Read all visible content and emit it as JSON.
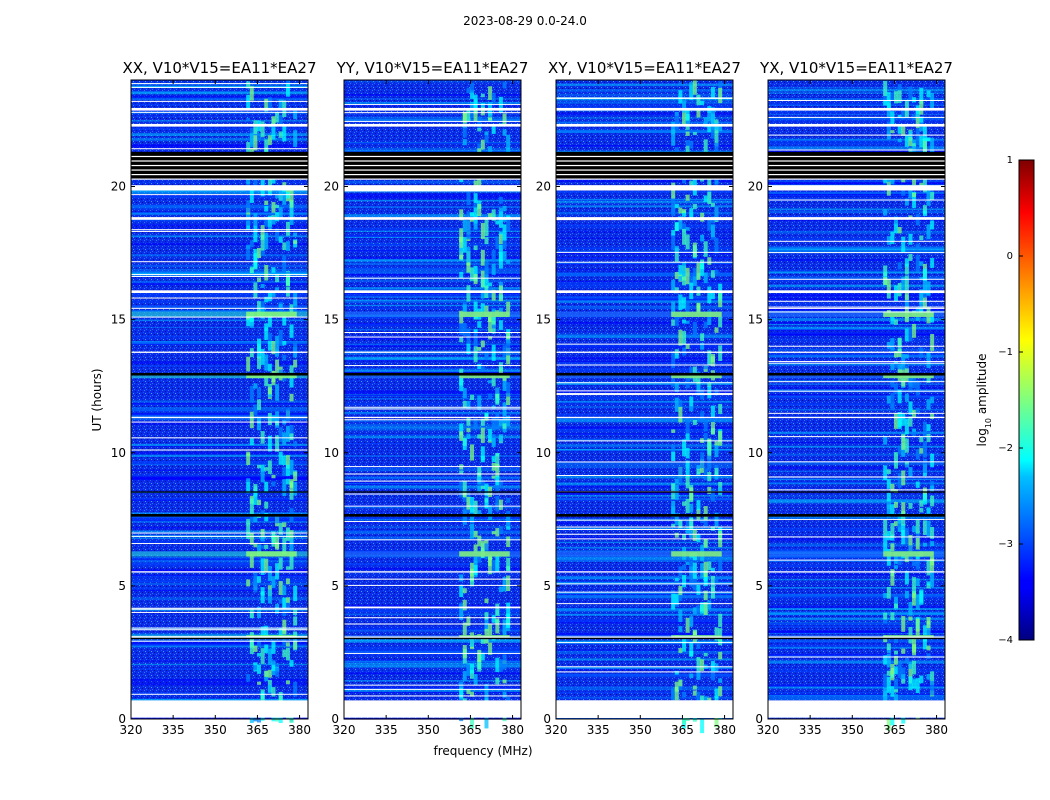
{
  "suptitle": "2023-08-29 0.0-24.0",
  "chart_data": {
    "type": "heatmap",
    "panels": [
      {
        "title": "XX, V10*V15=EA11*EA27",
        "pol": "XX"
      },
      {
        "title": "YY, V10*V15=EA11*EA27",
        "pol": "YY"
      },
      {
        "title": "XY, V10*V15=EA11*EA27",
        "pol": "XY"
      },
      {
        "title": "YX, V10*V15=EA11*EA27",
        "pol": "YX"
      }
    ],
    "xlabel": "frequency (MHz)",
    "ylabel": "UT (hours)",
    "xlim": [
      320,
      383
    ],
    "ylim": [
      0,
      24
    ],
    "xticks": [
      320,
      335,
      350,
      365,
      380
    ],
    "xtick_labels": [
      "320",
      "335",
      "350",
      "365",
      "380"
    ],
    "yticks": [
      0,
      5,
      10,
      15,
      20
    ],
    "ytick_labels": [
      "0",
      "5",
      "10",
      "15",
      "20"
    ],
    "rfi_band_mhz": [
      361,
      379
    ],
    "flagged_hours_white": [
      [
        0.05,
        0.7
      ],
      [
        3.05,
        3.1
      ],
      [
        5.5,
        5.55
      ],
      [
        11.3,
        11.35
      ],
      [
        13.75,
        13.8
      ],
      [
        16.0,
        16.1
      ],
      [
        18.75,
        18.85
      ],
      [
        19.85,
        20.05
      ],
      [
        22.25,
        22.35
      ],
      [
        22.85,
        22.95
      ]
    ],
    "flagged_hours_black": [
      [
        20.3,
        21.3
      ],
      [
        12.9,
        13.0
      ],
      [
        7.6,
        7.7
      ],
      [
        8.5,
        8.55
      ],
      [
        3.0,
        3.05
      ]
    ],
    "colorbar": {
      "label": "log",
      "label_sub": "10",
      "label_rest": " amplitude",
      "range": [
        -4,
        1
      ],
      "ticks": [
        -4,
        -3,
        -2,
        -1,
        0,
        1
      ],
      "tick_labels": [
        "−4",
        "−3",
        "−2",
        "−1",
        "0",
        "1"
      ],
      "colormap": "jet"
    }
  }
}
